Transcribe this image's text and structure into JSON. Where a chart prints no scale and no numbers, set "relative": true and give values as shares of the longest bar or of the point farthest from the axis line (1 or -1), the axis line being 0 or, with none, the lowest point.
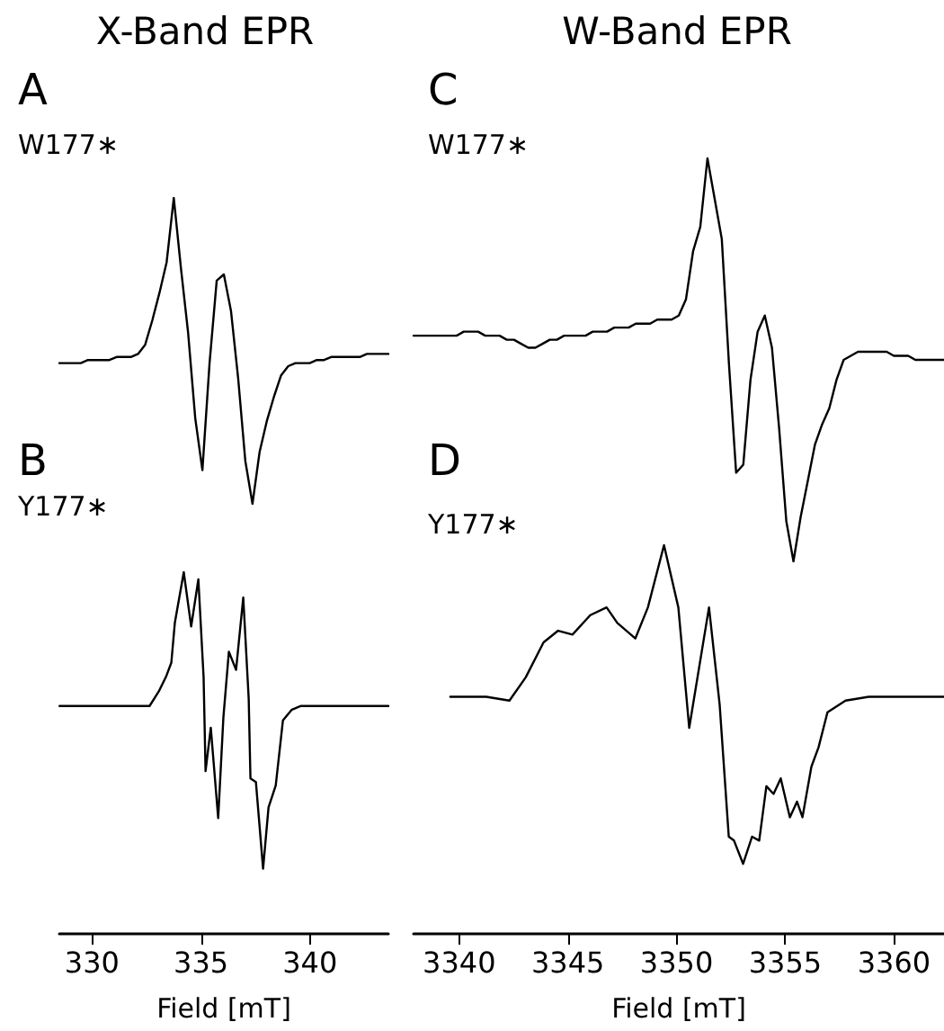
{
  "chart_data": [
    {
      "type": "line",
      "title": "X-Band EPR",
      "annotations": [
        "A"
      ],
      "relative": true,
      "tick_labels": false,
      "grid": false,
      "legend": false,
      "marker": "none",
      "line_style": "solid",
      "categories": [
        null,
        null,
        null,
        null,
        null,
        null,
        null,
        null,
        null,
        null,
        null,
        null,
        null,
        null,
        null,
        null,
        null,
        null,
        null,
        null,
        null,
        null,
        null,
        null,
        null,
        null,
        null,
        null,
        null,
        null,
        null,
        null,
        null,
        null,
        null,
        null,
        null,
        null,
        null,
        null,
        null,
        null,
        null,
        null,
        null,
        null,
        null
      ],
      "series": [
        {
          "name": "W177∗",
          "color": "#000000",
          "values": [
            0.46,
            0.46,
            0.46,
            0.46,
            0.47,
            0.47,
            0.47,
            0.47,
            0.48,
            0.48,
            0.48,
            0.49,
            0.52,
            0.6,
            0.69,
            0.79,
            1,
            0.77,
            0.56,
            0.28,
            0.11,
            0.46,
            0.73,
            0.75,
            0.63,
            0.41,
            0.14,
            0,
            0.17,
            0.27,
            0.35,
            0.42,
            0.45,
            0.46,
            0.46,
            0.46,
            0.47,
            0.47,
            0.48,
            0.48,
            0.48,
            0.48,
            0.48,
            0.49,
            0.49,
            0.49,
            0.49
          ]
        }
      ]
    },
    {
      "type": "line",
      "title": "W-Band EPR",
      "annotations": [
        "C"
      ],
      "relative": true,
      "tick_labels": false,
      "grid": false,
      "legend": false,
      "marker": "none",
      "line_style": "solid",
      "categories": [
        null,
        null,
        null,
        null,
        null,
        null,
        null,
        null,
        null,
        null,
        null,
        null,
        null,
        null,
        null,
        null,
        null,
        null,
        null,
        null,
        null,
        null,
        null,
        null,
        null,
        null,
        null,
        null,
        null,
        null,
        null,
        null,
        null,
        null,
        null,
        null,
        null,
        null,
        null,
        null,
        null,
        null,
        null,
        null,
        null,
        null,
        null,
        null,
        null,
        null,
        null,
        null,
        null,
        null,
        null,
        null,
        null,
        null,
        null,
        null,
        null,
        null,
        null,
        null,
        null,
        null,
        null,
        null,
        null,
        null,
        null,
        null,
        null,
        null,
        null
      ],
      "series": [
        {
          "name": "W177∗",
          "color": "#000000",
          "values": [
            0.56,
            0.56,
            0.56,
            0.56,
            0.56,
            0.56,
            0.56,
            0.57,
            0.57,
            0.57,
            0.56,
            0.56,
            0.56,
            0.55,
            0.55,
            0.54,
            0.53,
            0.53,
            0.54,
            0.55,
            0.55,
            0.56,
            0.56,
            0.56,
            0.56,
            0.57,
            0.57,
            0.57,
            0.58,
            0.58,
            0.58,
            0.59,
            0.59,
            0.59,
            0.6,
            0.6,
            0.6,
            0.61,
            0.65,
            0.77,
            0.83,
            1,
            0.9,
            0.8,
            0.49,
            0.22,
            0.24,
            0.45,
            0.57,
            0.61,
            0.53,
            0.33,
            0.1,
            0,
            0.11,
            0.2,
            0.29,
            0.34,
            0.38,
            0.45,
            0.5,
            0.51,
            0.52,
            0.52,
            0.52,
            0.52,
            0.52,
            0.51,
            0.51,
            0.51,
            0.5,
            0.5,
            0.5,
            0.5,
            0.5
          ]
        }
      ]
    },
    {
      "type": "line",
      "annotations": [
        "B"
      ],
      "xlabel": "Field [mT]",
      "relative": true,
      "tick_labels": "x",
      "grid": false,
      "legend": false,
      "marker": "none",
      "line_style": "solid",
      "xlim": [
        328.5,
        343.6
      ],
      "xticks": [
        330,
        335,
        340
      ],
      "x": [
        328.51,
        332.64,
        333.06,
        333.39,
        333.64,
        333.8,
        334.21,
        334.55,
        334.88,
        335.12,
        335.21,
        335.45,
        335.79,
        336.03,
        336.28,
        336.61,
        336.94,
        337.19,
        337.27,
        337.52,
        337.85,
        338.1,
        338.43,
        338.76,
        339.17,
        339.59,
        343.6
      ],
      "series": [
        {
          "name": "Y177∗",
          "color": "#000000",
          "values": [
            0.63,
            0.63,
            0.67,
            0.71,
            0.75,
            0.86,
            1,
            0.85,
            0.98,
            0.71,
            0.45,
            0.57,
            0.32,
            0.6,
            0.78,
            0.73,
            0.93,
            0.65,
            0.43,
            0.42,
            0.18,
            0.35,
            0.41,
            0.59,
            0.62,
            0.63,
            0.63
          ]
        }
      ]
    },
    {
      "type": "line",
      "annotations": [
        "D"
      ],
      "xlabel": "Field [mT]",
      "relative": true,
      "tick_labels": "x",
      "grid": false,
      "legend": false,
      "marker": "none",
      "line_style": "solid",
      "xlim": [
        3337.9,
        3362.3
      ],
      "xticks": [
        3340,
        3345,
        3350,
        3355,
        3360
      ],
      "x": [
        3339.59,
        3341.24,
        3342.31,
        3343.06,
        3343.88,
        3344.55,
        3345.21,
        3346.03,
        3346.78,
        3347.27,
        3348.1,
        3348.68,
        3349.42,
        3350.08,
        3350.58,
        3351.49,
        3351.98,
        3352.4,
        3352.64,
        3353.06,
        3353.47,
        3353.8,
        3354.13,
        3354.46,
        3354.79,
        3355.21,
        3355.54,
        3355.79,
        3356.2,
        3356.53,
        3356.94,
        3357.77,
        3358.84,
        3362.3
      ],
      "series": [
        {
          "name": "Y177∗",
          "color": "#000000",
          "values": [
            0.61,
            0.61,
            0.6,
            0.66,
            0.75,
            0.78,
            0.77,
            0.82,
            0.84,
            0.8,
            0.76,
            0.84,
            1,
            0.84,
            0.53,
            0.84,
            0.59,
            0.25,
            0.24,
            0.18,
            0.25,
            0.24,
            0.38,
            0.36,
            0.4,
            0.3,
            0.34,
            0.3,
            0.43,
            0.48,
            0.57,
            0.6,
            0.61,
            0.61
          ]
        }
      ]
    }
  ]
}
